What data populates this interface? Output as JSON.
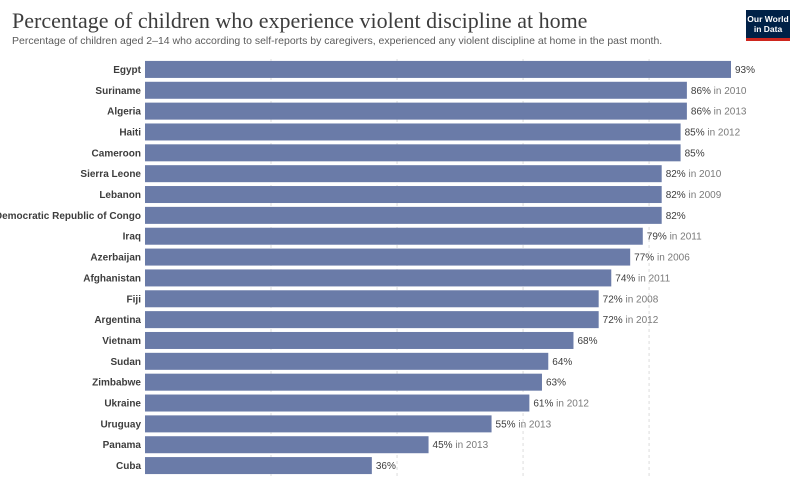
{
  "header": {
    "title": "Percentage of children who experience violent discipline at home",
    "subtitle": "Percentage of children aged 2–14 who according to self-reports by caregivers, experienced any violent discipline at home in the past month."
  },
  "logo": {
    "line1": "Our World",
    "line2": "in Data"
  },
  "colors": {
    "bar": "#6a7ba8",
    "grid": "#dddddd",
    "logo_bg": "#002147",
    "logo_accent": "#ce261e"
  },
  "chart_data": {
    "type": "bar",
    "orientation": "horizontal",
    "categories": [
      "Egypt",
      "Suriname",
      "Algeria",
      "Haiti",
      "Cameroon",
      "Sierra Leone",
      "Lebanon",
      "Democratic Republic of Congo",
      "Iraq",
      "Azerbaijan",
      "Afghanistan",
      "Fiji",
      "Argentina",
      "Vietnam",
      "Sudan",
      "Zimbabwe",
      "Ukraine",
      "Uruguay",
      "Panama",
      "Cuba"
    ],
    "values": [
      93,
      86,
      86,
      85,
      85,
      82,
      82,
      82,
      79,
      77,
      74,
      72,
      72,
      68,
      64,
      63,
      61,
      55,
      45,
      36
    ],
    "value_labels": [
      "93%",
      "86%",
      "86%",
      "85%",
      "85%",
      "82%",
      "82%",
      "82%",
      "79%",
      "77%",
      "74%",
      "72%",
      "72%",
      "68%",
      "64%",
      "63%",
      "61%",
      "55%",
      "45%",
      "36%"
    ],
    "year_labels": [
      "",
      "in 2010",
      "in 2013",
      "in 2012",
      "",
      "in 2010",
      "in 2009",
      "",
      "in 2011",
      "in 2006",
      "in 2011",
      "in 2008",
      "in 2012",
      "",
      "",
      "",
      "in 2012",
      "in 2013",
      "in 2013",
      ""
    ],
    "xlim": [
      0,
      93
    ],
    "grid_values": [
      20,
      40,
      60,
      80
    ],
    "grid": true
  }
}
